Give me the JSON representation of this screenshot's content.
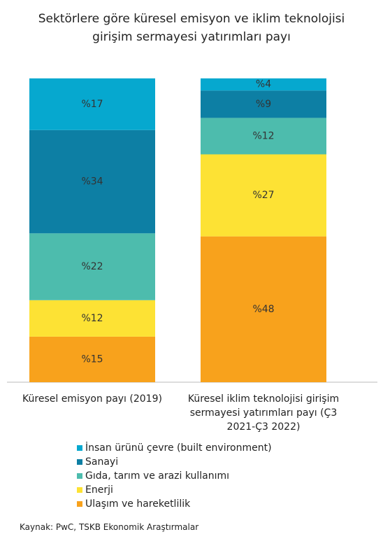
{
  "chart_data": {
    "type": "stacked_bar",
    "title": "Sektörlere göre küresel emisyon ve iklim teknolojisi girişim sermayesi yatırımları payı",
    "categories": [
      "Küresel emisyon payı (2019)",
      "Küresel iklim teknolojisi girişim sermayesi yatırımları payı (Ç3 2021-Ç3 2022)"
    ],
    "series": [
      {
        "name": "İnsan ürünü çevre (built environment)",
        "color": "#06a8cf",
        "values": [
          17,
          4
        ],
        "value_labels": [
          "%17",
          "%4"
        ]
      },
      {
        "name": "Sanayi",
        "color": "#0d7fa4",
        "values": [
          34,
          9
        ],
        "value_labels": [
          "%34",
          "%9"
        ]
      },
      {
        "name": "Gıda, tarım ve arazi kullanımı",
        "color": "#4dbcad",
        "values": [
          22,
          12
        ],
        "value_labels": [
          "%22",
          "%12"
        ]
      },
      {
        "name": "Enerji",
        "color": "#fde234",
        "values": [
          12,
          27
        ],
        "value_labels": [
          "%12",
          "%27"
        ]
      },
      {
        "name": "Ulaşım ve hareketlilik",
        "color": "#f8a21c",
        "values": [
          15,
          48
        ],
        "value_labels": [
          "%15",
          "%48"
        ]
      }
    ],
    "ylim": [
      0,
      100
    ],
    "legend": "bottom",
    "source": "Kaynak: PwC, TSKB Ekonomik Araştırmalar"
  }
}
